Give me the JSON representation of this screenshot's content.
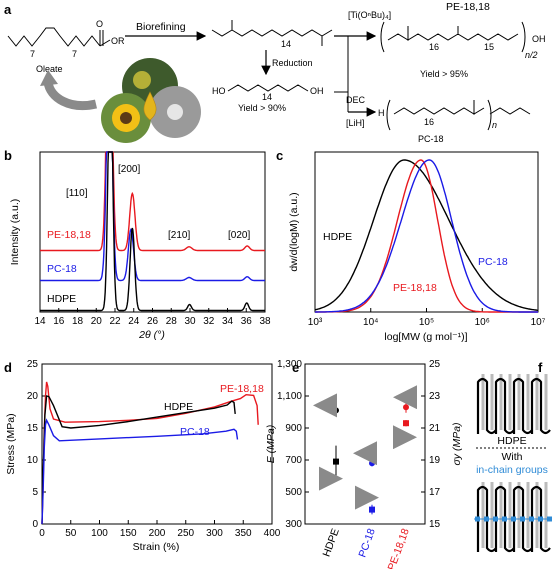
{
  "panel_labels": [
    "a",
    "b",
    "c",
    "d",
    "e",
    "f"
  ],
  "scheme": {
    "oleate_label": "Oleate",
    "oleate_subscripts": [
      "7",
      "7"
    ],
    "ester_R": "OR",
    "ester_O": "O",
    "arrow_biorefining": "Biorefining",
    "arrow_reduction": "Reduction",
    "diester_subscript": "14",
    "diol_subscript": "14",
    "diol_HO": "HO",
    "diol_OH": "OH",
    "yield_diol": "Yield > 90%",
    "catalyst_ti": "[Ti(OⁿBu)₄]",
    "pe_title": "PE-18,18",
    "pe_subscripts": [
      "16",
      "15"
    ],
    "pe_repeat": "n/2",
    "pe_end_OH": "OH",
    "yield_pe": "Yield > 95%",
    "dec_catalyst": [
      "DEC",
      "[LiH]"
    ],
    "pc_H": "H",
    "pc_subscript": "16",
    "pc_repeat": "n",
    "pc_title": "PC-18"
  },
  "chart_data": [
    {
      "id": "b",
      "type": "line",
      "xlabel": "2θ (°)",
      "ylabel": "Intensity (a.u.)",
      "xlim": [
        14,
        38
      ],
      "xticks": [
        14,
        16,
        18,
        20,
        22,
        24,
        26,
        28,
        30,
        32,
        34,
        36,
        38
      ],
      "series": [
        {
          "name": "PE-18,18",
          "color": "#e8191f",
          "offset": 0.4,
          "peaks": [
            [
              21.4,
              1.8,
              0.28
            ],
            [
              23.85,
              0.38,
              0.28
            ],
            [
              29.9,
              0.025,
              0.3
            ],
            [
              36.1,
              0.03,
              0.25
            ]
          ]
        },
        {
          "name": "PC-18",
          "color": "#1b1be6",
          "offset": 0.2,
          "peaks": [
            [
              21.4,
              1.7,
              0.28
            ],
            [
              23.7,
              0.34,
              0.28
            ],
            [
              29.9,
              0.02,
              0.3
            ],
            [
              36.1,
              0.025,
              0.25
            ]
          ]
        },
        {
          "name": "HDPE",
          "color": "#000000",
          "offset": 0.0,
          "peaks": [
            [
              21.5,
              1.7,
              0.24
            ],
            [
              23.85,
              0.55,
              0.24
            ],
            [
              29.95,
              0.04,
              0.2
            ],
            [
              36.05,
              0.05,
              0.2
            ]
          ]
        }
      ],
      "annotations": [
        "[110]",
        "[200]",
        "[210]",
        "[020]"
      ]
    },
    {
      "id": "c",
      "type": "line",
      "xlabel": "log[MW (g mol⁻¹)]",
      "ylabel": "dw/d(logM) (a.u.)",
      "xscale": "log",
      "xlim": [
        1000,
        10000000
      ],
      "xticks": [
        "10³",
        "10⁴",
        "10⁵",
        "10⁶",
        "10⁷"
      ],
      "series": [
        {
          "name": "HDPE",
          "color": "#000000",
          "peak_logM": 4.6,
          "width_left": 0.55,
          "width_right": 0.8
        },
        {
          "name": "PE-18,18",
          "color": "#e8191f",
          "peak_logM": 4.9,
          "width_left": 0.42,
          "width_right": 0.3
        },
        {
          "name": "PC-18",
          "color": "#1b1be6",
          "peak_logM": 5.05,
          "width_left": 0.5,
          "width_right": 0.4
        }
      ]
    },
    {
      "id": "d",
      "type": "line",
      "xlabel": "Strain (%)",
      "ylabel": "Stress (MPa)",
      "xlim": [
        0,
        400
      ],
      "ylim": [
        0,
        25
      ],
      "xticks": [
        0,
        50,
        100,
        150,
        200,
        250,
        300,
        350,
        400
      ],
      "yticks": [
        0,
        5,
        10,
        15,
        20,
        25
      ],
      "series": [
        {
          "name": "PE-18,18",
          "color": "#e8191f",
          "points": [
            [
              0,
              0
            ],
            [
              2,
              6
            ],
            [
              4,
              15
            ],
            [
              6,
              20
            ],
            [
              8,
              22.2
            ],
            [
              10,
              21.5
            ],
            [
              14,
              18
            ],
            [
              20,
              16.4
            ],
            [
              40,
              15.9
            ],
            [
              100,
              16
            ],
            [
              150,
              16.2
            ],
            [
              200,
              16.5
            ],
            [
              250,
              17.3
            ],
            [
              300,
              18.3
            ],
            [
              330,
              19.2
            ],
            [
              345,
              19.6
            ],
            [
              355,
              20.2
            ],
            [
              368,
              20.1
            ],
            [
              374,
              18.5
            ],
            [
              376,
              15.5
            ]
          ]
        },
        {
          "name": "HDPE",
          "color": "#000000",
          "points": [
            [
              0,
              0
            ],
            [
              2,
              8
            ],
            [
              5,
              17
            ],
            [
              8,
              20
            ],
            [
              12,
              19.9
            ],
            [
              20,
              18.5
            ],
            [
              35,
              15.2
            ],
            [
              50,
              15
            ],
            [
              100,
              15.4
            ],
            [
              150,
              16
            ],
            [
              200,
              16.7
            ],
            [
              250,
              17.4
            ],
            [
              300,
              18.1
            ],
            [
              322,
              18.6
            ],
            [
              330,
              19.2
            ],
            [
              334,
              19.0
            ],
            [
              336,
              17.2
            ]
          ]
        },
        {
          "name": "PC-18",
          "color": "#1b1be6",
          "points": [
            [
              0,
              0
            ],
            [
              2,
              5
            ],
            [
              4,
              12
            ],
            [
              6,
              15.5
            ],
            [
              8,
              16.2
            ],
            [
              12,
              15.5
            ],
            [
              20,
              13.8
            ],
            [
              30,
              13
            ],
            [
              100,
              13.3
            ],
            [
              200,
              13.7
            ],
            [
              280,
              14.1
            ],
            [
              320,
              14.5
            ],
            [
              334,
              14.8
            ],
            [
              338,
              14.5
            ],
            [
              340,
              13.2
            ]
          ]
        }
      ]
    },
    {
      "id": "e",
      "type": "scatter",
      "categories": [
        "HDPE",
        "PC-18",
        "PE-18,18"
      ],
      "category_colors": [
        "#000000",
        "#1b1be6",
        "#e8191f"
      ],
      "ylabel_left": "E (MPa)",
      "ylabel_right": "σy (MPa)",
      "ylim_left": [
        300,
        1300
      ],
      "ylim_right": [
        15,
        25
      ],
      "yticks_left": [
        "300",
        "500",
        "700",
        "900",
        "1,100",
        "1,300"
      ],
      "yticks_right": [
        "15",
        "17",
        "19",
        "21",
        "23",
        "25"
      ],
      "E_values": [
        690,
        390,
        930
      ],
      "E_errors": [
        100,
        30,
        20
      ],
      "sigma_y_values": [
        22.1,
        18.8,
        22.3
      ],
      "sigma_y_errors": [
        0.2,
        0.2,
        0.35
      ]
    }
  ],
  "panel_f": {
    "top_label": "HDPE",
    "bottom_label": [
      "With",
      "in-chain groups"
    ],
    "accent": "#2f8bd6"
  }
}
